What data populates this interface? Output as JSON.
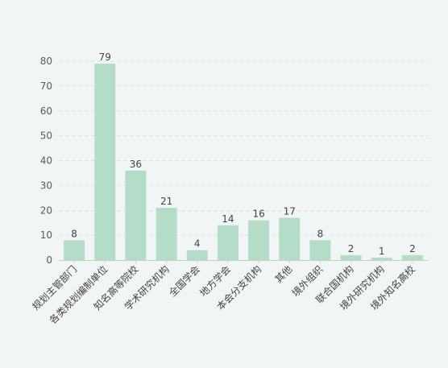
{
  "chart_data": {
    "type": "bar",
    "title": "",
    "xlabel": "",
    "ylabel": "",
    "ylim": [
      0,
      80
    ],
    "yticks": [
      0,
      10,
      20,
      30,
      40,
      50,
      60,
      70,
      80
    ],
    "grid": true,
    "legend": "none",
    "categories": [
      "规划主管部门",
      "各类规划编制单位",
      "知名高等院校",
      "学术研究机构",
      "全国学会",
      "地方学会",
      "本会分支机构",
      "其他",
      "境外组织",
      "联合国机构",
      "境外研究机构",
      "境外知名高校"
    ],
    "values": [
      8,
      79,
      36,
      21,
      4,
      14,
      16,
      17,
      8,
      2,
      1,
      2
    ],
    "colors": {
      "bar": "#b3ddc9",
      "grid": "#d9dcdc",
      "axis": "#c8cccc",
      "tick_text": "#5a5a5a",
      "label_text": "#444444",
      "background": "#f2f5f5"
    }
  }
}
